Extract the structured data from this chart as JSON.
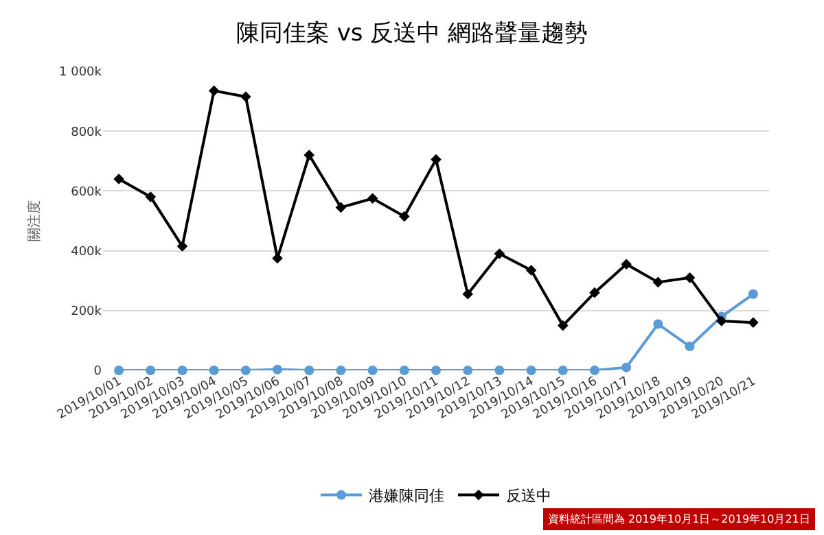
{
  "chart_data": {
    "type": "line",
    "title": "陳同佳案 vs 反送中 網路聲量趨勢",
    "ylabel": "關注度",
    "categories": [
      "2019/10/01",
      "2019/10/02",
      "2019/10/03",
      "2019/10/04",
      "2019/10/05",
      "2019/10/06",
      "2019/10/07",
      "2019/10/08",
      "2019/10/09",
      "2019/10/10",
      "2019/10/11",
      "2019/10/12",
      "2019/10/13",
      "2019/10/14",
      "2019/10/15",
      "2019/10/16",
      "2019/10/17",
      "2019/10/18",
      "2019/10/19",
      "2019/10/20",
      "2019/10/21"
    ],
    "series": [
      {
        "name": "港嫌陳同佳",
        "color": "#5b9bd5",
        "marker": "circle",
        "values": [
          0,
          0,
          0,
          0,
          0,
          3,
          0,
          0,
          0,
          0,
          0,
          0,
          0,
          0,
          0,
          0,
          10,
          155,
          80,
          180,
          255
        ]
      },
      {
        "name": "反送中",
        "color": "#000000",
        "marker": "diamond",
        "values": [
          640,
          580,
          415,
          935,
          915,
          375,
          720,
          545,
          575,
          515,
          705,
          255,
          390,
          335,
          150,
          260,
          355,
          295,
          310,
          165,
          160
        ]
      }
    ],
    "ylim": [
      0,
      1000
    ],
    "yticks": [
      {
        "value": 0,
        "label": "0"
      },
      {
        "value": 200,
        "label": "200k"
      },
      {
        "value": 400,
        "label": "400k"
      },
      {
        "value": 600,
        "label": "600k"
      },
      {
        "value": 800,
        "label": "800k"
      },
      {
        "value": 1000,
        "label": "1 000k"
      }
    ],
    "grid": "y",
    "legend": "bottom",
    "line_style": "solid",
    "annotations": [
      "資料統計區間為 2019年10月1日～2019年10月21日"
    ]
  }
}
